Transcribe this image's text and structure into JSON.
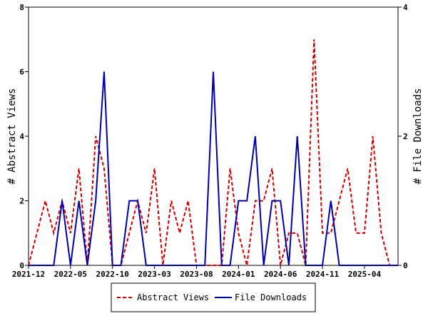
{
  "chart_data": {
    "type": "line",
    "y_left_label": "# Abstract Views",
    "y_right_label": "# File Downloads",
    "y_left_range": [
      0,
      8
    ],
    "y_right_range": [
      0,
      4
    ],
    "y_left_ticks": [
      "0",
      "2",
      "4",
      "6",
      "8"
    ],
    "y_right_ticks": [
      "0",
      "2",
      "4"
    ],
    "x_ticks": [
      {
        "label": "2021-12",
        "month_index": 0
      },
      {
        "label": "2022-05",
        "month_index": 5
      },
      {
        "label": "2022-10",
        "month_index": 10
      },
      {
        "label": "2023-03",
        "month_index": 15
      },
      {
        "label": "2023-08",
        "month_index": 20
      },
      {
        "label": "2024-01",
        "month_index": 25
      },
      {
        "label": "2024-06",
        "month_index": 30
      },
      {
        "label": "2024-11",
        "month_index": 35
      },
      {
        "label": "2025-04",
        "month_index": 40
      }
    ],
    "month_count": 45,
    "series": [
      {
        "name": "Abstract Views",
        "axis": "left",
        "color": "#cc0000",
        "style": "dashed",
        "values": [
          0,
          1,
          2,
          1,
          2,
          1,
          3,
          0,
          4,
          3,
          0,
          0,
          1,
          2,
          1,
          3,
          0,
          2,
          1,
          2,
          0,
          0,
          0,
          0,
          3,
          1,
          0,
          2,
          2,
          3,
          0,
          1,
          1,
          0,
          7,
          1,
          1,
          2,
          3,
          1,
          1,
          4,
          1,
          0,
          0
        ]
      },
      {
        "name": "File Downloads",
        "axis": "right",
        "color": "#0000aa",
        "style": "solid",
        "values": [
          0,
          0,
          0,
          0,
          1,
          0,
          1,
          0,
          1,
          3,
          0,
          0,
          1,
          1,
          0,
          0,
          0,
          0,
          0,
          0,
          0,
          0,
          3,
          0,
          0,
          1,
          1,
          2,
          0,
          1,
          1,
          0,
          2,
          0,
          0,
          0,
          1,
          0,
          0,
          0,
          0,
          0,
          0,
          0,
          0
        ]
      }
    ],
    "grid": false,
    "legend_position": "bottom"
  }
}
